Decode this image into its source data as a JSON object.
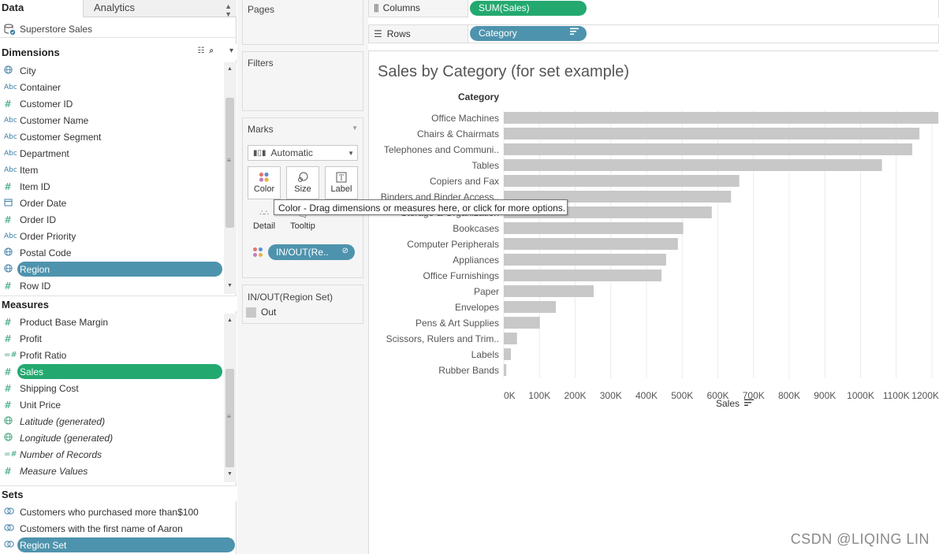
{
  "pane_tabs": {
    "data": "Data",
    "analytics": "Analytics"
  },
  "datasource": {
    "name": "Superstore Sales",
    "icon": "datasource-icon"
  },
  "dimensions": {
    "title": "Dimensions",
    "items": [
      {
        "label": "City",
        "icon": "globe"
      },
      {
        "label": "Container",
        "icon": "abc"
      },
      {
        "label": "Customer ID",
        "icon": "hash"
      },
      {
        "label": "Customer Name",
        "icon": "abc"
      },
      {
        "label": "Customer Segment",
        "icon": "abc"
      },
      {
        "label": "Department",
        "icon": "abc"
      },
      {
        "label": "Item",
        "icon": "abc"
      },
      {
        "label": "Item ID",
        "icon": "hash"
      },
      {
        "label": "Order Date",
        "icon": "calendar"
      },
      {
        "label": "Order ID",
        "icon": "hash"
      },
      {
        "label": "Order Priority",
        "icon": "abc"
      },
      {
        "label": "Postal Code",
        "icon": "globe"
      },
      {
        "label": "Region",
        "icon": "globe",
        "selected": true
      },
      {
        "label": "Row ID",
        "icon": "hash"
      }
    ]
  },
  "measures": {
    "title": "Measures",
    "items": [
      {
        "label": "Product Base Margin",
        "icon": "hash"
      },
      {
        "label": "Profit",
        "icon": "hash"
      },
      {
        "label": "Profit Ratio",
        "icon": "calc-hash"
      },
      {
        "label": "Sales",
        "icon": "hash",
        "selected": true
      },
      {
        "label": "Shipping Cost",
        "icon": "hash"
      },
      {
        "label": "Unit Price",
        "icon": "hash"
      },
      {
        "label": "Latitude (generated)",
        "icon": "globe",
        "italic": true
      },
      {
        "label": "Longitude (generated)",
        "icon": "globe",
        "italic": true
      },
      {
        "label": "Number of Records",
        "icon": "calc-hash",
        "italic": true
      },
      {
        "label": "Measure Values",
        "icon": "hash",
        "italic": true
      }
    ]
  },
  "sets": {
    "title": "Sets",
    "items": [
      {
        "label": "Customers who purchased more than$100"
      },
      {
        "label": "Customers with the first name of Aaron"
      },
      {
        "label": "Region Set",
        "selected": true
      }
    ]
  },
  "cards": {
    "pages": "Pages",
    "filters": "Filters",
    "marks": "Marks",
    "marks_type": "Automatic",
    "mark_buttons": {
      "color": "Color",
      "size": "Size",
      "label": "Label",
      "detail": "Detail",
      "tooltip": "Tooltip"
    },
    "marks_pill": "IN/OUT(Re..",
    "legend_title": "IN/OUT(Region Set)",
    "legend_item": "Out"
  },
  "shelves": {
    "columns_label": "Columns",
    "columns_pill": "SUM(Sales)",
    "rows_label": "Rows",
    "rows_pill": "Category"
  },
  "tooltip": "Color - Drag dimensions or measures here, or click for more options.",
  "watermark": "CSDN @LIQING LIN",
  "colors": {
    "bar": "#c8c8c8",
    "green_pill": "#23a96f",
    "blue_pill": "#4e93ad"
  },
  "chart_data": {
    "type": "bar",
    "orientation": "horizontal",
    "title": "Sales by Category (for set example)",
    "category_header": "Category",
    "xlabel": "Sales",
    "xlim": [
      0,
      1200000
    ],
    "xticks": [
      0,
      100000,
      200000,
      300000,
      400000,
      500000,
      600000,
      700000,
      800000,
      900000,
      1000000,
      1100000,
      1200000
    ],
    "xtick_labels": [
      "0K",
      "100K",
      "200K",
      "300K",
      "400K",
      "500K",
      "600K",
      "700K",
      "800K",
      "900K",
      "1000K",
      "1100K",
      "1200K"
    ],
    "categories": [
      "Office Machines",
      "Chairs & Chairmats",
      "Telephones and Communi..",
      "Tables",
      "Copiers and Fax",
      "Binders and Binder Access..",
      "Storage & Organization",
      "Bookcases",
      "Computer Peripherals",
      "Appliances",
      "Office Furnishings",
      "Paper",
      "Envelopes",
      "Pens & Art Supplies",
      "Scissors, Rulers and Trim..",
      "Labels",
      "Rubber Bands"
    ],
    "values": [
      1218000,
      1165000,
      1145000,
      1060000,
      660000,
      637000,
      583000,
      503000,
      488000,
      455000,
      442000,
      252000,
      146000,
      101000,
      37000,
      20000,
      7000
    ],
    "grid": "vertical"
  }
}
